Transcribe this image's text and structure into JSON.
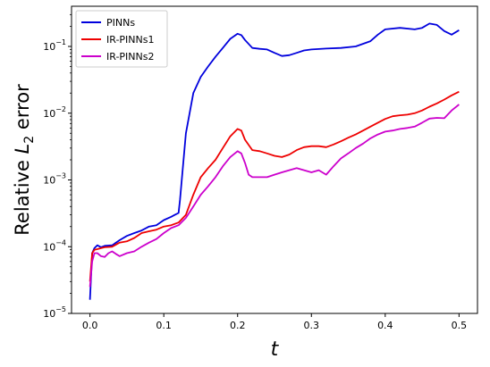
{
  "chart_data": {
    "type": "line",
    "xlabel": "t",
    "ylabel_prefix": "Relative ",
    "ylabel_var": "L",
    "ylabel_sub": "2",
    "ylabel_suffix": " error",
    "xlim": [
      -0.025,
      0.525
    ],
    "ylim": [
      1e-05,
      0.4
    ],
    "yscale": "log",
    "xticks": [
      0.0,
      0.1,
      0.2,
      0.3,
      0.4,
      0.5
    ],
    "xtick_labels": [
      "0.0",
      "0.1",
      "0.2",
      "0.3",
      "0.4",
      "0.5"
    ],
    "yticks": [
      {
        "value": 1e-05,
        "base": "10",
        "exp": "−5"
      },
      {
        "value": 0.0001,
        "base": "10",
        "exp": "−4"
      },
      {
        "value": 0.001,
        "base": "10",
        "exp": "−3"
      },
      {
        "value": 0.01,
        "base": "10",
        "exp": "−2"
      },
      {
        "value": 0.1,
        "base": "10",
        "exp": "−1"
      }
    ],
    "legend_position": "top-left",
    "series": [
      {
        "name": "PINNs",
        "color": "#0000dd",
        "x": [
          0.0,
          0.003,
          0.006,
          0.01,
          0.015,
          0.02,
          0.03,
          0.04,
          0.05,
          0.06,
          0.07,
          0.08,
          0.09,
          0.1,
          0.11,
          0.115,
          0.12,
          0.122,
          0.125,
          0.13,
          0.14,
          0.15,
          0.16,
          0.17,
          0.18,
          0.19,
          0.2,
          0.205,
          0.21,
          0.22,
          0.23,
          0.24,
          0.25,
          0.26,
          0.27,
          0.28,
          0.29,
          0.3,
          0.32,
          0.34,
          0.36,
          0.38,
          0.39,
          0.4,
          0.42,
          0.44,
          0.45,
          0.46,
          0.47,
          0.48,
          0.49,
          0.5
        ],
        "y": [
          1.6e-05,
          8e-05,
          9.5e-05,
          0.000105,
          9.8e-05,
          0.000103,
          0.000105,
          0.000125,
          0.000145,
          0.00016,
          0.000175,
          0.0002,
          0.00021,
          0.00025,
          0.00028,
          0.0003,
          0.00032,
          0.0005,
          0.0012,
          0.005,
          0.02,
          0.035,
          0.05,
          0.07,
          0.095,
          0.13,
          0.155,
          0.148,
          0.125,
          0.095,
          0.092,
          0.09,
          0.08,
          0.072,
          0.074,
          0.08,
          0.087,
          0.09,
          0.093,
          0.095,
          0.1,
          0.12,
          0.15,
          0.18,
          0.19,
          0.18,
          0.19,
          0.22,
          0.21,
          0.17,
          0.15,
          0.175
        ]
      },
      {
        "name": "IR-PINNs1",
        "color": "#ee0000",
        "x": [
          0.0,
          0.003,
          0.006,
          0.01,
          0.015,
          0.02,
          0.03,
          0.04,
          0.05,
          0.06,
          0.07,
          0.08,
          0.09,
          0.1,
          0.11,
          0.12,
          0.13,
          0.14,
          0.15,
          0.16,
          0.17,
          0.18,
          0.19,
          0.2,
          0.205,
          0.21,
          0.22,
          0.23,
          0.24,
          0.25,
          0.26,
          0.27,
          0.28,
          0.29,
          0.3,
          0.31,
          0.32,
          0.33,
          0.34,
          0.35,
          0.36,
          0.37,
          0.38,
          0.39,
          0.4,
          0.41,
          0.42,
          0.43,
          0.44,
          0.45,
          0.46,
          0.47,
          0.48,
          0.49,
          0.5
        ],
        "y": [
          3e-05,
          8e-05,
          9e-05,
          9.2e-05,
          9.5e-05,
          9.8e-05,
          0.0001,
          0.000115,
          0.00012,
          0.000135,
          0.00016,
          0.00017,
          0.00018,
          0.0002,
          0.00021,
          0.00023,
          0.0003,
          0.0006,
          0.0011,
          0.0015,
          0.002,
          0.003,
          0.0045,
          0.0058,
          0.0055,
          0.004,
          0.0028,
          0.0027,
          0.0025,
          0.0023,
          0.0022,
          0.0024,
          0.0028,
          0.0031,
          0.0032,
          0.0032,
          0.0031,
          0.0034,
          0.0038,
          0.0043,
          0.0048,
          0.0055,
          0.0063,
          0.0072,
          0.0082,
          0.009,
          0.0093,
          0.0095,
          0.01,
          0.011,
          0.0125,
          0.014,
          0.016,
          0.0185,
          0.021
        ]
      },
      {
        "name": "IR-PINNs2",
        "color": "#cc00cc",
        "x": [
          0.0,
          0.003,
          0.006,
          0.01,
          0.015,
          0.02,
          0.025,
          0.03,
          0.035,
          0.04,
          0.05,
          0.06,
          0.07,
          0.08,
          0.09,
          0.1,
          0.11,
          0.12,
          0.13,
          0.14,
          0.15,
          0.16,
          0.17,
          0.18,
          0.19,
          0.2,
          0.205,
          0.21,
          0.215,
          0.22,
          0.23,
          0.24,
          0.25,
          0.26,
          0.27,
          0.28,
          0.29,
          0.3,
          0.31,
          0.32,
          0.33,
          0.34,
          0.35,
          0.36,
          0.37,
          0.38,
          0.39,
          0.4,
          0.41,
          0.42,
          0.43,
          0.44,
          0.45,
          0.46,
          0.47,
          0.48,
          0.49,
          0.5
        ],
        "y": [
          2.5e-05,
          6e-05,
          8e-05,
          8e-05,
          7.2e-05,
          7e-05,
          8e-05,
          8.5e-05,
          7.8e-05,
          7.2e-05,
          8e-05,
          8.5e-05,
          0.0001,
          0.000115,
          0.00013,
          0.00016,
          0.00019,
          0.00021,
          0.00027,
          0.0004,
          0.0006,
          0.0008,
          0.0011,
          0.0016,
          0.0022,
          0.0027,
          0.0025,
          0.0018,
          0.0012,
          0.0011,
          0.0011,
          0.0011,
          0.0012,
          0.0013,
          0.0014,
          0.0015,
          0.0014,
          0.0013,
          0.0014,
          0.0012,
          0.0016,
          0.0021,
          0.0025,
          0.003,
          0.0035,
          0.0042,
          0.0048,
          0.0053,
          0.0055,
          0.0058,
          0.006,
          0.0063,
          0.0072,
          0.0083,
          0.0085,
          0.0084,
          0.011,
          0.0135
        ]
      }
    ]
  }
}
